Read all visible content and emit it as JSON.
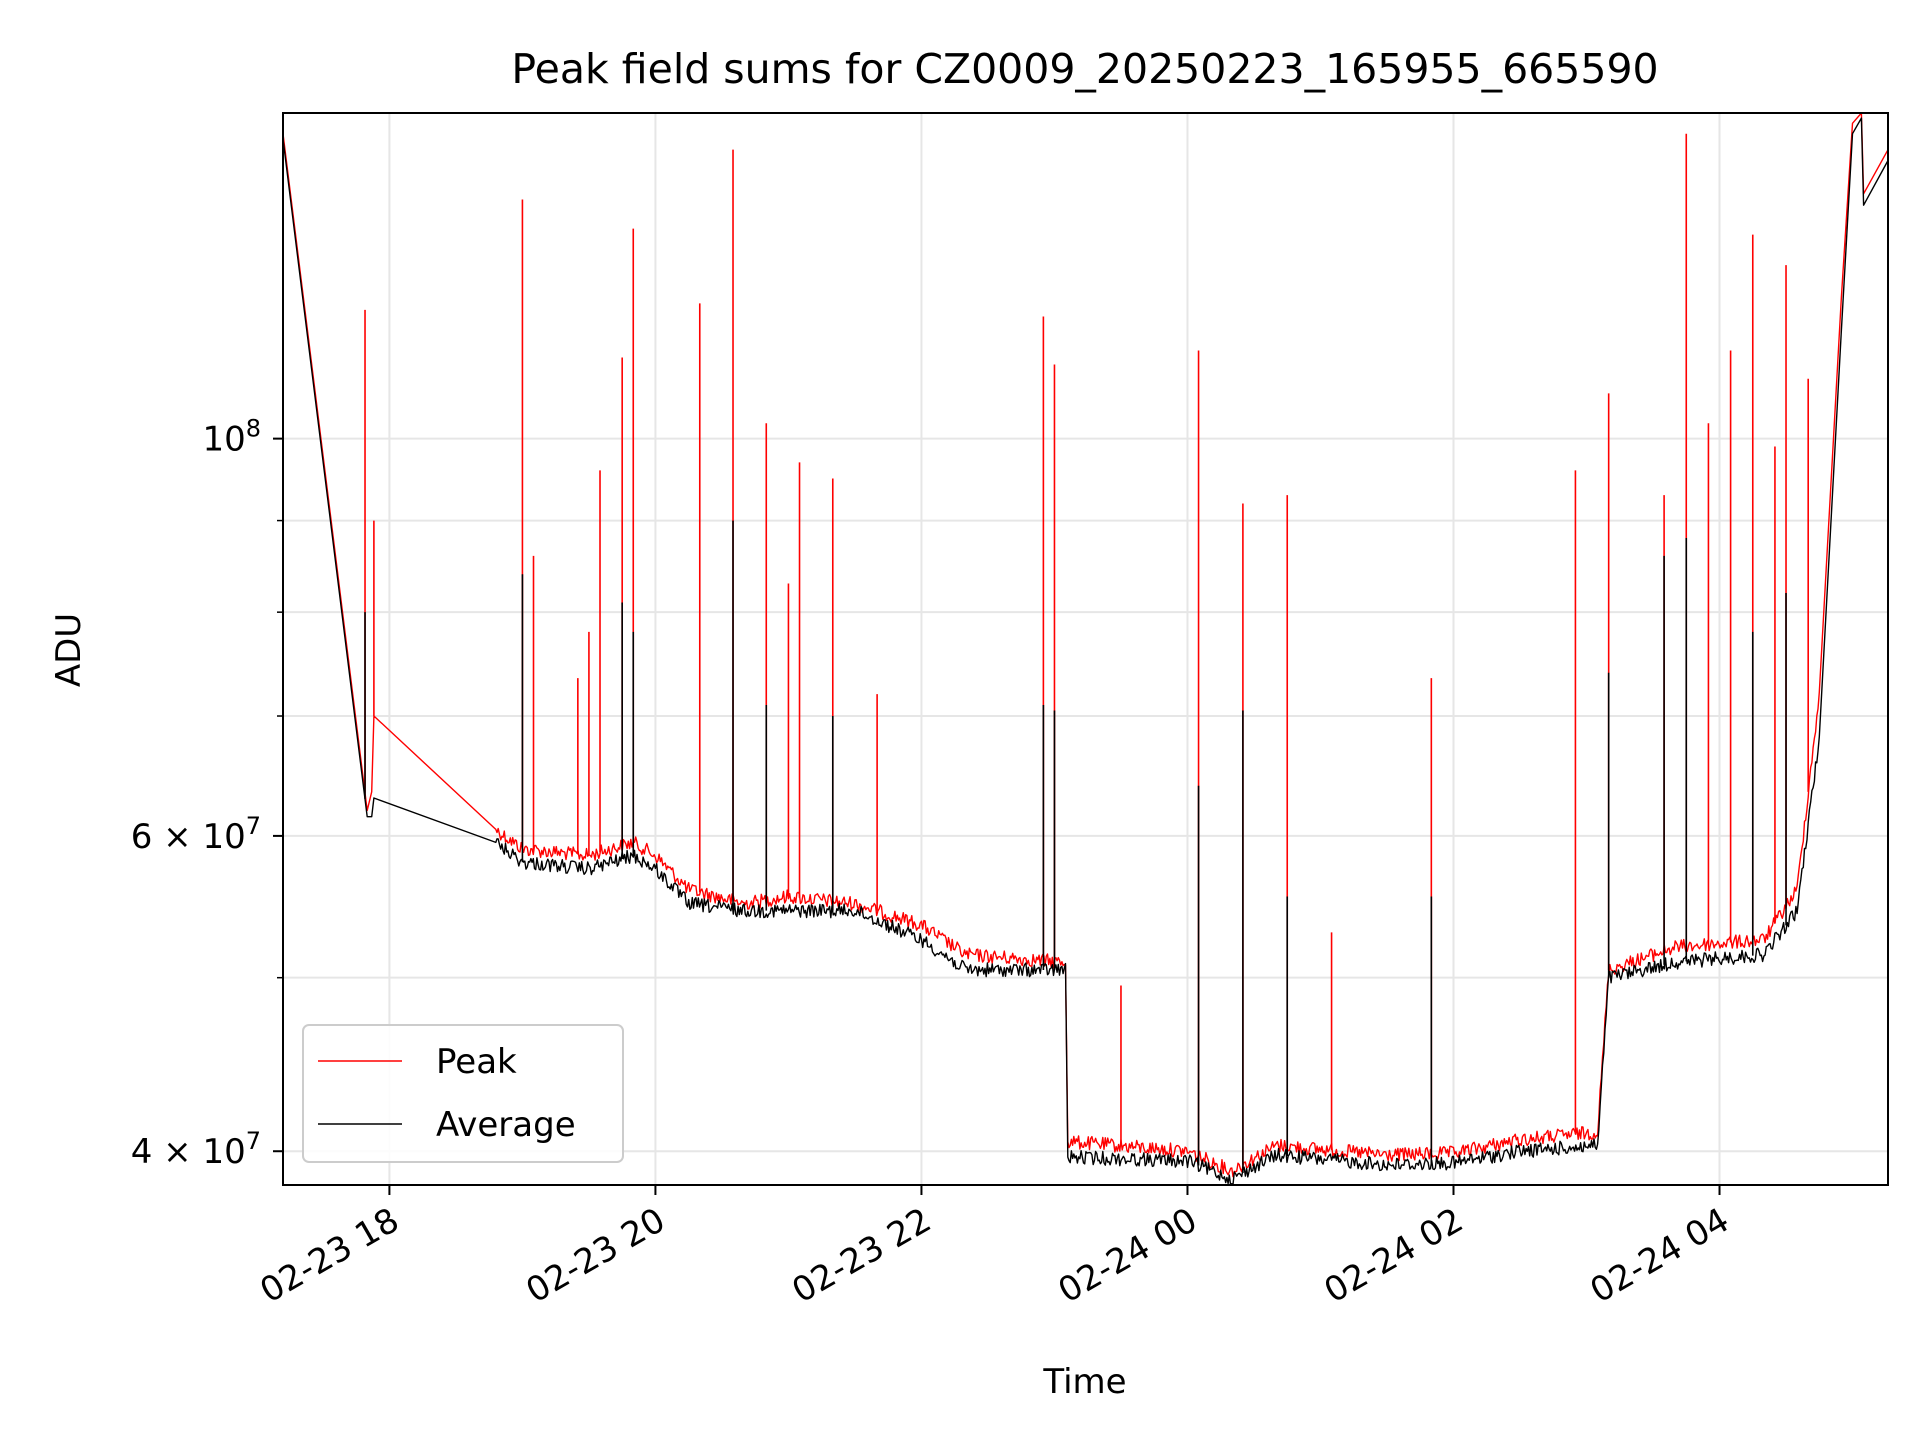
{
  "chart_data": {
    "type": "line",
    "title": "Peak field sums for CZ0009_20250223_165955_665590",
    "xlabel": "Time",
    "ylabel": "ADU",
    "x_ticks": [
      "02-23 18",
      "02-23 20",
      "02-23 22",
      "02-24 00",
      "02-24 02",
      "02-24 04"
    ],
    "y_ticks": [
      {
        "value": 40000000,
        "base": "4 × 10",
        "exp": "7"
      },
      {
        "value": 60000000,
        "base": "6 × 10",
        "exp": "7"
      },
      {
        "value": 100000000,
        "base": "10",
        "exp": "8"
      }
    ],
    "yscale": "log",
    "xlim": [
      "2025-02-23 17:12",
      "2025-02-24 05:16"
    ],
    "ylim": [
      38300000,
      152000000
    ],
    "grid": true,
    "legend": {
      "position": "lower-left",
      "entries": [
        {
          "name": "Peak",
          "color": "#ff0000"
        },
        {
          "name": "Average",
          "color": "#000000"
        }
      ]
    },
    "series": [
      {
        "name": "Peak",
        "color": "#ff0000",
        "points": [
          [
            "2025-02-23 17:12",
            148000000
          ],
          [
            "2025-02-23 17:50",
            62000000
          ],
          [
            "2025-02-23 17:52",
            63500000
          ],
          [
            "2025-02-23 17:53",
            70000000
          ],
          [
            "2025-02-23 18:48",
            60500000
          ],
          [
            "2025-02-23 19:00",
            59000000
          ],
          [
            "2025-02-23 19:30",
            58500000
          ],
          [
            "2025-02-23 19:50",
            59500000
          ],
          [
            "2025-02-23 20:00",
            58500000
          ],
          [
            "2025-02-23 20:15",
            56000000
          ],
          [
            "2025-02-23 20:40",
            55000000
          ],
          [
            "2025-02-23 21:00",
            55500000
          ],
          [
            "2025-02-23 21:30",
            55000000
          ],
          [
            "2025-02-23 22:00",
            53500000
          ],
          [
            "2025-02-23 22:20",
            51500000
          ],
          [
            "2025-02-23 23:05",
            51000000
          ],
          [
            "2025-02-23 23:06",
            40500000
          ],
          [
            "2025-02-24 00:00",
            40000000
          ],
          [
            "2025-02-24 00:20",
            39000000
          ],
          [
            "2025-02-24 00:40",
            40300000
          ],
          [
            "2025-02-24 01:30",
            39800000
          ],
          [
            "2025-02-24 02:00",
            39900000
          ],
          [
            "2025-02-24 02:30",
            40600000
          ],
          [
            "2025-02-24 03:05",
            41000000
          ],
          [
            "2025-02-24 03:10",
            50500000
          ],
          [
            "2025-02-24 03:40",
            52000000
          ],
          [
            "2025-02-24 04:20",
            52500000
          ],
          [
            "2025-02-24 04:35",
            56000000
          ],
          [
            "2025-02-24 04:45",
            72000000
          ],
          [
            "2025-02-24 04:55",
            120000000
          ],
          [
            "2025-02-24 05:00",
            150000000
          ],
          [
            "2025-02-24 05:04",
            152000000
          ],
          [
            "2025-02-24 05:05",
            137000000
          ],
          [
            "2025-02-24 05:16",
            145000000
          ]
        ],
        "spikes": [
          [
            "2025-02-23 17:49",
            118000000
          ],
          [
            "2025-02-23 17:53",
            90000000
          ],
          [
            "2025-02-23 19:00",
            136000000
          ],
          [
            "2025-02-23 19:05",
            86000000
          ],
          [
            "2025-02-23 19:25",
            73500000
          ],
          [
            "2025-02-23 19:30",
            78000000
          ],
          [
            "2025-02-23 19:35",
            96000000
          ],
          [
            "2025-02-23 19:45",
            111000000
          ],
          [
            "2025-02-23 19:50",
            131000000
          ],
          [
            "2025-02-23 20:20",
            119000000
          ],
          [
            "2025-02-23 20:35",
            145000000
          ],
          [
            "2025-02-23 20:50",
            102000000
          ],
          [
            "2025-02-23 21:00",
            83000000
          ],
          [
            "2025-02-23 21:05",
            97000000
          ],
          [
            "2025-02-23 21:20",
            95000000
          ],
          [
            "2025-02-23 21:40",
            72000000
          ],
          [
            "2025-02-23 22:55",
            117000000
          ],
          [
            "2025-02-23 23:00",
            110000000
          ],
          [
            "2025-02-23 23:30",
            49500000
          ],
          [
            "2025-02-24 00:05",
            112000000
          ],
          [
            "2025-02-24 00:25",
            92000000
          ],
          [
            "2025-02-24 00:45",
            93000000
          ],
          [
            "2025-02-24 01:05",
            53000000
          ],
          [
            "2025-02-24 01:50",
            73500000
          ],
          [
            "2025-02-24 02:55",
            96000000
          ],
          [
            "2025-02-24 03:10",
            106000000
          ],
          [
            "2025-02-24 03:35",
            93000000
          ],
          [
            "2025-02-24 03:45",
            148000000
          ],
          [
            "2025-02-24 03:55",
            102000000
          ],
          [
            "2025-02-24 04:05",
            112000000
          ],
          [
            "2025-02-24 04:15",
            130000000
          ],
          [
            "2025-02-24 04:25",
            99000000
          ],
          [
            "2025-02-24 04:30",
            125000000
          ],
          [
            "2025-02-24 04:40",
            108000000
          ]
        ]
      },
      {
        "name": "Average",
        "color": "#000000",
        "points": [
          [
            "2025-02-23 17:12",
            147000000
          ],
          [
            "2025-02-23 17:50",
            61500000
          ],
          [
            "2025-02-23 17:52",
            61500000
          ],
          [
            "2025-02-23 17:53",
            63000000
          ],
          [
            "2025-02-23 18:48",
            59500000
          ],
          [
            "2025-02-23 19:00",
            58000000
          ],
          [
            "2025-02-23 19:30",
            57500000
          ],
          [
            "2025-02-23 19:50",
            58500000
          ],
          [
            "2025-02-23 20:00",
            57500000
          ],
          [
            "2025-02-23 20:15",
            55000000
          ],
          [
            "2025-02-23 20:40",
            54500000
          ],
          [
            "2025-02-23 21:00",
            54500000
          ],
          [
            "2025-02-23 21:30",
            54500000
          ],
          [
            "2025-02-23 22:00",
            52500000
          ],
          [
            "2025-02-23 22:20",
            50500000
          ],
          [
            "2025-02-23 23:05",
            50500000
          ],
          [
            "2025-02-23 23:06",
            39700000
          ],
          [
            "2025-02-24 00:00",
            39500000
          ],
          [
            "2025-02-24 00:20",
            38600000
          ],
          [
            "2025-02-24 00:40",
            39800000
          ],
          [
            "2025-02-24 01:30",
            39300000
          ],
          [
            "2025-02-24 02:00",
            39400000
          ],
          [
            "2025-02-24 02:30",
            40000000
          ],
          [
            "2025-02-24 03:05",
            40300000
          ],
          [
            "2025-02-24 03:10",
            50000000
          ],
          [
            "2025-02-24 03:40",
            51000000
          ],
          [
            "2025-02-24 04:20",
            51500000
          ],
          [
            "2025-02-24 04:35",
            54500000
          ],
          [
            "2025-02-24 04:45",
            68000000
          ],
          [
            "2025-02-24 04:55",
            115000000
          ],
          [
            "2025-02-24 05:00",
            148000000
          ],
          [
            "2025-02-24 05:04",
            151000000
          ],
          [
            "2025-02-24 05:05",
            135000000
          ],
          [
            "2025-02-24 05:16",
            143000000
          ]
        ],
        "spikes": [
          [
            "2025-02-23 17:49",
            80000000
          ],
          [
            "2025-02-23 19:00",
            84000000
          ],
          [
            "2025-02-23 19:45",
            81000000
          ],
          [
            "2025-02-23 19:50",
            78000000
          ],
          [
            "2025-02-23 20:35",
            90000000
          ],
          [
            "2025-02-23 20:50",
            71000000
          ],
          [
            "2025-02-23 21:20",
            70000000
          ],
          [
            "2025-02-23 22:55",
            71000000
          ],
          [
            "2025-02-23 23:00",
            70500000
          ],
          [
            "2025-02-24 00:05",
            64000000
          ],
          [
            "2025-02-24 00:25",
            70500000
          ],
          [
            "2025-02-24 00:45",
            55500000
          ],
          [
            "2025-02-24 01:50",
            55500000
          ],
          [
            "2025-02-24 03:10",
            74000000
          ],
          [
            "2025-02-24 03:35",
            86000000
          ],
          [
            "2025-02-24 03:45",
            88000000
          ],
          [
            "2025-02-24 04:15",
            78000000
          ],
          [
            "2025-02-24 04:30",
            82000000
          ]
        ]
      }
    ]
  }
}
